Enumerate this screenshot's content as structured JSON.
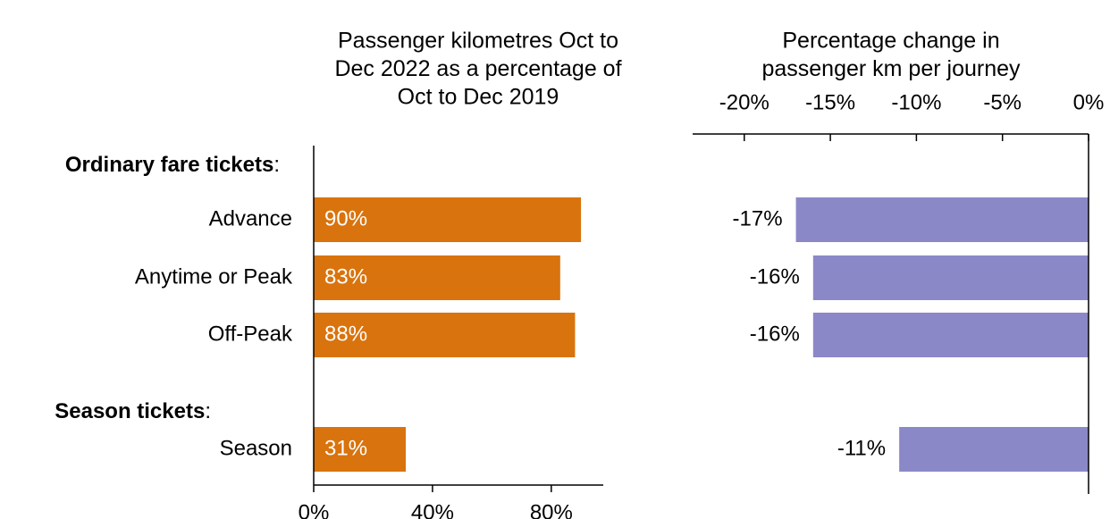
{
  "chart_data": [
    {
      "type": "hbar",
      "title_lines": [
        "Passenger kilometres Oct to",
        "Dec 2022 as a percentage of",
        "Oct to Dec 2019"
      ],
      "groups": [
        {
          "label": "Ordinary fare tickets",
          "punctuation": ":"
        },
        {
          "label": "Season tickets",
          "punctuation": ":"
        }
      ],
      "categories": [
        "Advance",
        "Anytime or Peak",
        "Off-Peak",
        "Season"
      ],
      "values": [
        90,
        83,
        88,
        31
      ],
      "value_labels": [
        "90%",
        "83%",
        "88%",
        "31%"
      ],
      "color": "#d9730d",
      "xlim": [
        0,
        97.5
      ],
      "xticks": [
        {
          "value": 0,
          "label": "0%"
        },
        {
          "value": 40,
          "label": "40%"
        },
        {
          "value": 80,
          "label": "80%"
        }
      ]
    },
    {
      "type": "hbar",
      "title_lines": [
        "Percentage change in",
        "passenger km per journey"
      ],
      "values": [
        -17,
        -16,
        -16,
        -11
      ],
      "value_labels": [
        "-17%",
        "-16%",
        "-16%",
        "-11%"
      ],
      "color": "#8b88c8",
      "xlim": [
        -23,
        0
      ],
      "xticks": [
        {
          "value": -20,
          "label": "-20%"
        },
        {
          "value": -15,
          "label": "-15%"
        },
        {
          "value": -10,
          "label": "-10%"
        },
        {
          "value": -5,
          "label": "-5%"
        },
        {
          "value": 0,
          "label": "0%"
        }
      ]
    }
  ]
}
